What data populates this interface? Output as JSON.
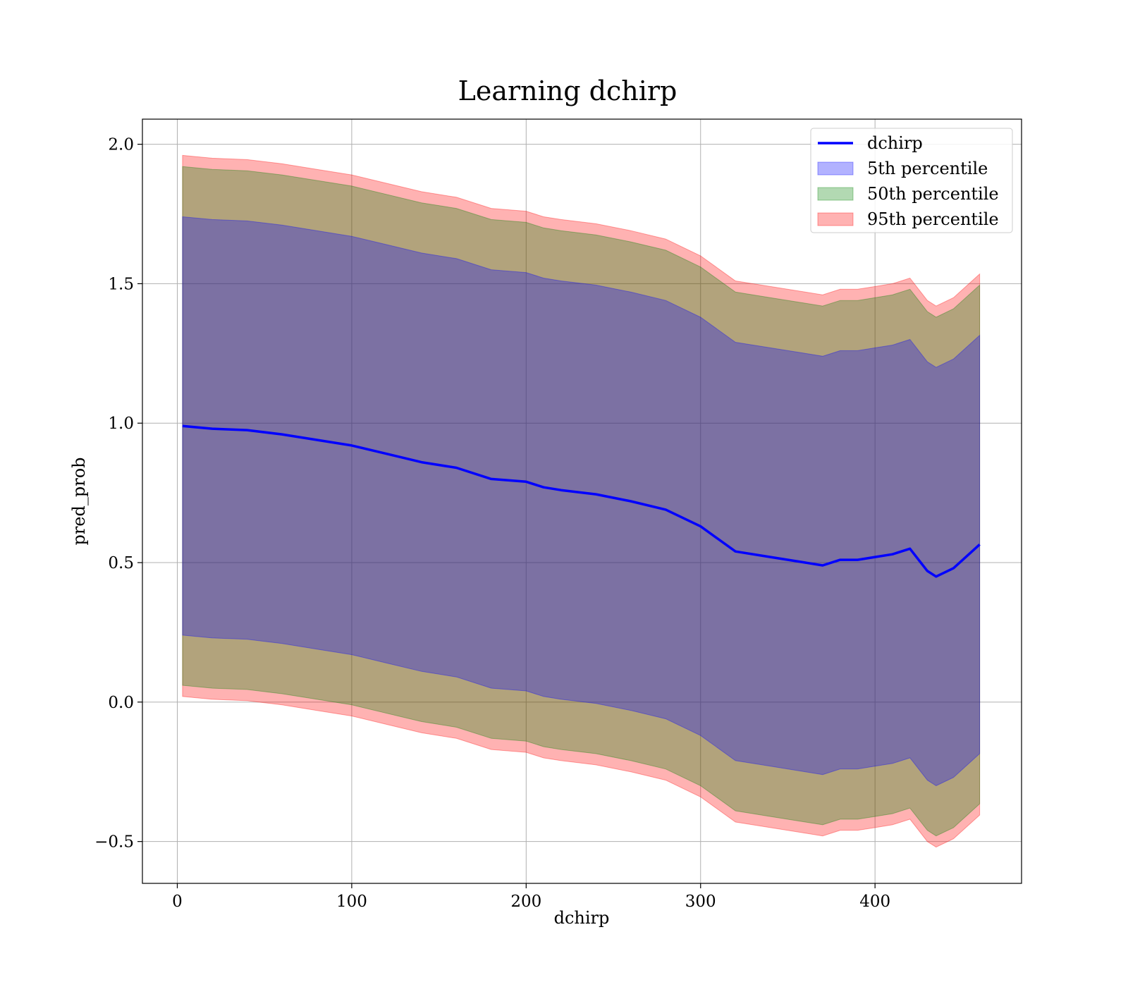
{
  "chart_data": {
    "type": "area",
    "title": "Learning dchirp",
    "xlabel": "dchirp",
    "ylabel": "pred_prob",
    "xlim": [
      -20,
      484
    ],
    "ylim": [
      -0.65,
      2.09
    ],
    "xticks": [
      0,
      100,
      200,
      300,
      400
    ],
    "yticks": [
      -0.5,
      0.0,
      0.5,
      1.0,
      1.5,
      2.0
    ],
    "xtick_labels": [
      "0",
      "100",
      "200",
      "300",
      "400"
    ],
    "ytick_labels": [
      "−0.5",
      "0.0",
      "0.5",
      "1.0",
      "1.5",
      "2.0"
    ],
    "grid": true,
    "legend_position": "top-right",
    "legend": [
      {
        "label": "dchirp",
        "kind": "line",
        "color": "#0000ff"
      },
      {
        "label": "5th percentile",
        "kind": "patch",
        "color": "#0000ff"
      },
      {
        "label": "50th percentile",
        "kind": "patch",
        "color": "#008000"
      },
      {
        "label": "95th percentile",
        "kind": "patch",
        "color": "#ff0000"
      }
    ],
    "x": [
      3,
      20,
      40,
      60,
      80,
      100,
      120,
      140,
      160,
      180,
      200,
      210,
      220,
      240,
      260,
      280,
      300,
      320,
      340,
      360,
      370,
      380,
      390,
      400,
      410,
      420,
      430,
      435,
      445,
      460
    ],
    "series": [
      {
        "name": "dchirp",
        "color": "#0000ff",
        "values": [
          0.99,
          0.98,
          0.975,
          0.96,
          0.94,
          0.92,
          0.89,
          0.86,
          0.84,
          0.8,
          0.79,
          0.77,
          0.76,
          0.745,
          0.72,
          0.69,
          0.63,
          0.54,
          0.52,
          0.5,
          0.49,
          0.51,
          0.51,
          0.52,
          0.53,
          0.55,
          0.47,
          0.45,
          0.48,
          0.565
        ]
      },
      {
        "name": "5th percentile",
        "color": "#0000ff",
        "lower": [
          0.24,
          0.23,
          0.225,
          0.21,
          0.19,
          0.17,
          0.14,
          0.11,
          0.09,
          0.05,
          0.04,
          0.02,
          0.01,
          -0.005,
          -0.03,
          -0.06,
          -0.12,
          -0.21,
          -0.23,
          -0.25,
          -0.26,
          -0.24,
          -0.24,
          -0.23,
          -0.22,
          -0.2,
          -0.28,
          -0.3,
          -0.27,
          -0.185
        ],
        "upper": [
          1.74,
          1.73,
          1.725,
          1.71,
          1.69,
          1.67,
          1.64,
          1.61,
          1.59,
          1.55,
          1.54,
          1.52,
          1.51,
          1.495,
          1.47,
          1.44,
          1.38,
          1.29,
          1.27,
          1.25,
          1.24,
          1.26,
          1.26,
          1.27,
          1.28,
          1.3,
          1.22,
          1.2,
          1.23,
          1.315
        ]
      },
      {
        "name": "50th percentile",
        "color": "#008000",
        "lower": [
          0.06,
          0.05,
          0.045,
          0.03,
          0.01,
          -0.01,
          -0.04,
          -0.07,
          -0.09,
          -0.13,
          -0.14,
          -0.16,
          -0.17,
          -0.185,
          -0.21,
          -0.24,
          -0.3,
          -0.39,
          -0.41,
          -0.43,
          -0.44,
          -0.42,
          -0.42,
          -0.41,
          -0.4,
          -0.38,
          -0.46,
          -0.48,
          -0.45,
          -0.365
        ],
        "upper": [
          1.92,
          1.91,
          1.905,
          1.89,
          1.87,
          1.85,
          1.82,
          1.79,
          1.77,
          1.73,
          1.72,
          1.7,
          1.69,
          1.675,
          1.65,
          1.62,
          1.56,
          1.47,
          1.45,
          1.43,
          1.42,
          1.44,
          1.44,
          1.45,
          1.46,
          1.48,
          1.4,
          1.38,
          1.41,
          1.495
        ]
      },
      {
        "name": "95th percentile",
        "color": "#ff0000",
        "lower": [
          0.02,
          0.01,
          0.005,
          -0.01,
          -0.03,
          -0.05,
          -0.08,
          -0.11,
          -0.13,
          -0.17,
          -0.18,
          -0.2,
          -0.21,
          -0.225,
          -0.25,
          -0.28,
          -0.34,
          -0.43,
          -0.45,
          -0.47,
          -0.48,
          -0.46,
          -0.46,
          -0.45,
          -0.44,
          -0.42,
          -0.5,
          -0.52,
          -0.49,
          -0.405
        ],
        "upper": [
          1.96,
          1.95,
          1.945,
          1.93,
          1.91,
          1.89,
          1.86,
          1.83,
          1.81,
          1.77,
          1.76,
          1.74,
          1.73,
          1.715,
          1.69,
          1.66,
          1.6,
          1.51,
          1.49,
          1.47,
          1.46,
          1.48,
          1.48,
          1.49,
          1.5,
          1.52,
          1.44,
          1.42,
          1.45,
          1.535
        ]
      }
    ]
  }
}
